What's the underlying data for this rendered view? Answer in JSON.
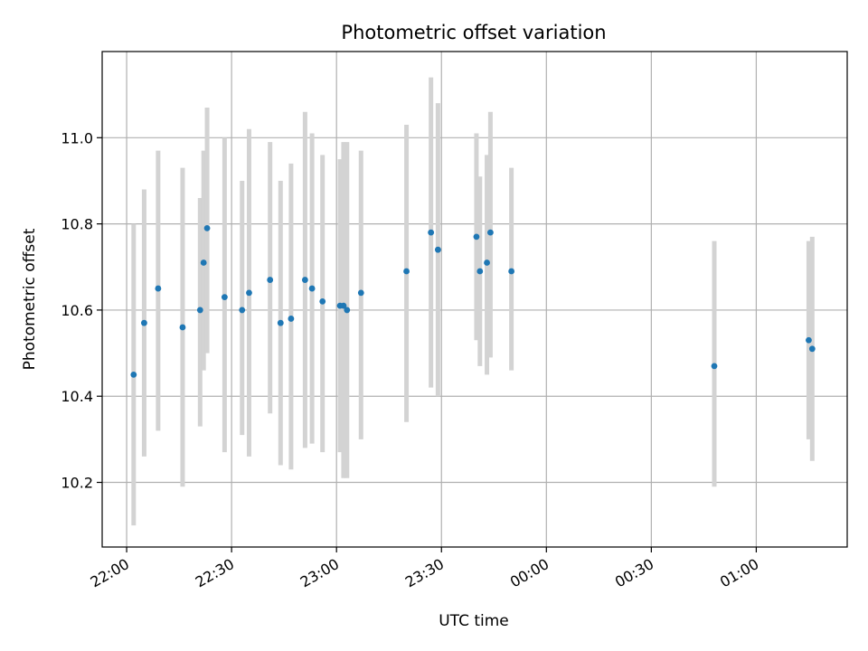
{
  "chart_data": {
    "type": "scatter",
    "title": "Photometric offset variation",
    "xlabel": "UTC time",
    "ylabel": "Photometric offset",
    "x_unit": "UTC time (HH:MM, night spanning midnight)",
    "xlim": [
      "21:53",
      "01:26"
    ],
    "ylim": [
      10.05,
      11.2
    ],
    "xticks": [
      "22:00",
      "22:30",
      "23:00",
      "23:30",
      "00:00",
      "00:30",
      "01:00"
    ],
    "yticks": [
      10.2,
      10.4,
      10.6,
      10.8,
      11.0
    ],
    "grid": true,
    "legend": "none",
    "colors": {
      "point": "#1f77b4",
      "errorbar": "#d3d3d3",
      "grid": "#b0b0b0"
    },
    "points": [
      {
        "t": "22:02",
        "y": 10.45,
        "ylo": 10.1,
        "yhi": 10.8
      },
      {
        "t": "22:05",
        "y": 10.57,
        "ylo": 10.26,
        "yhi": 10.88
      },
      {
        "t": "22:09",
        "y": 10.65,
        "ylo": 10.32,
        "yhi": 10.97
      },
      {
        "t": "22:16",
        "y": 10.56,
        "ylo": 10.19,
        "yhi": 10.93
      },
      {
        "t": "22:21",
        "y": 10.6,
        "ylo": 10.33,
        "yhi": 10.86
      },
      {
        "t": "22:22",
        "y": 10.71,
        "ylo": 10.46,
        "yhi": 10.97
      },
      {
        "t": "22:23",
        "y": 10.79,
        "ylo": 10.5,
        "yhi": 11.07
      },
      {
        "t": "22:28",
        "y": 10.63,
        "ylo": 10.27,
        "yhi": 11.0
      },
      {
        "t": "22:33",
        "y": 10.6,
        "ylo": 10.31,
        "yhi": 10.9
      },
      {
        "t": "22:35",
        "y": 10.64,
        "ylo": 10.26,
        "yhi": 11.02
      },
      {
        "t": "22:41",
        "y": 10.67,
        "ylo": 10.36,
        "yhi": 10.99
      },
      {
        "t": "22:44",
        "y": 10.57,
        "ylo": 10.24,
        "yhi": 10.9
      },
      {
        "t": "22:47",
        "y": 10.58,
        "ylo": 10.23,
        "yhi": 10.94
      },
      {
        "t": "22:51",
        "y": 10.67,
        "ylo": 10.28,
        "yhi": 11.06
      },
      {
        "t": "22:53",
        "y": 10.65,
        "ylo": 10.29,
        "yhi": 11.01
      },
      {
        "t": "22:56",
        "y": 10.62,
        "ylo": 10.27,
        "yhi": 10.96
      },
      {
        "t": "23:01",
        "y": 10.61,
        "ylo": 10.27,
        "yhi": 10.95
      },
      {
        "t": "23:02",
        "y": 10.61,
        "ylo": 10.21,
        "yhi": 10.99
      },
      {
        "t": "23:03",
        "y": 10.6,
        "ylo": 10.21,
        "yhi": 10.99
      },
      {
        "t": "23:07",
        "y": 10.64,
        "ylo": 10.3,
        "yhi": 10.97
      },
      {
        "t": "23:20",
        "y": 10.69,
        "ylo": 10.34,
        "yhi": 11.03
      },
      {
        "t": "23:27",
        "y": 10.78,
        "ylo": 10.42,
        "yhi": 11.14
      },
      {
        "t": "23:29",
        "y": 10.74,
        "ylo": 10.4,
        "yhi": 11.08
      },
      {
        "t": "23:40",
        "y": 10.77,
        "ylo": 10.53,
        "yhi": 11.01
      },
      {
        "t": "23:41",
        "y": 10.69,
        "ylo": 10.47,
        "yhi": 10.91
      },
      {
        "t": "23:43",
        "y": 10.71,
        "ylo": 10.45,
        "yhi": 10.96
      },
      {
        "t": "23:44",
        "y": 10.78,
        "ylo": 10.49,
        "yhi": 11.06
      },
      {
        "t": "23:50",
        "y": 10.69,
        "ylo": 10.46,
        "yhi": 10.93
      },
      {
        "t": "00:48",
        "y": 10.47,
        "ylo": 10.19,
        "yhi": 10.76
      },
      {
        "t": "01:15",
        "y": 10.53,
        "ylo": 10.3,
        "yhi": 10.76
      },
      {
        "t": "01:16",
        "y": 10.51,
        "ylo": 10.25,
        "yhi": 10.77
      }
    ]
  }
}
